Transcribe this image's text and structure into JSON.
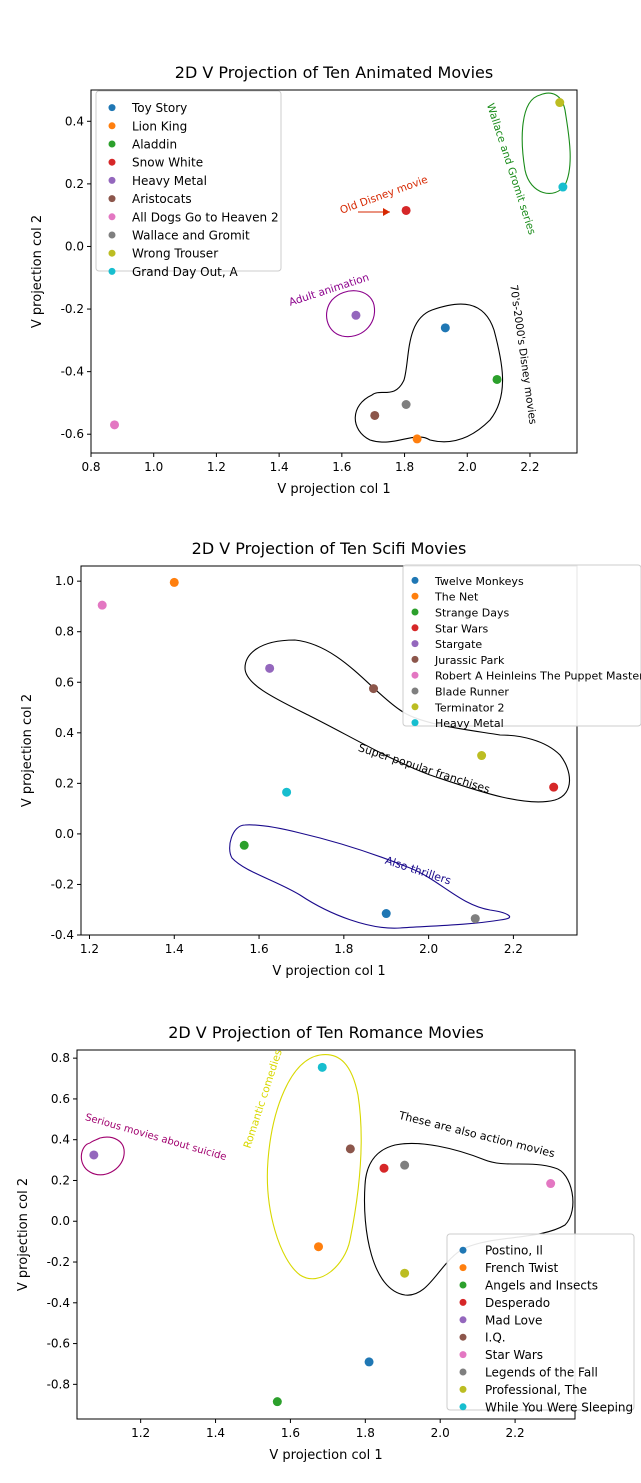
{
  "chart_data": [
    {
      "type": "scatter",
      "title": "2D V Projection of Ten Animated Movies",
      "xlabel": "V projection col 1",
      "ylabel": "V projection col 2",
      "xlim": [
        0.8,
        2.35
      ],
      "ylim": [
        -0.66,
        0.5
      ],
      "xticks": [
        "0.8",
        "1.0",
        "1.2",
        "1.4",
        "1.6",
        "1.8",
        "2.0",
        "2.2"
      ],
      "yticks": [
        "0.4",
        "0.2",
        "0.0",
        "-0.2",
        "-0.4",
        "-0.6"
      ],
      "legend": "top-left",
      "points": [
        {
          "name": "Toy Story",
          "x": 1.93,
          "y": -0.26,
          "color": "#1f77b4"
        },
        {
          "name": "Lion King",
          "x": 1.84,
          "y": -0.615,
          "color": "#ff7f0e"
        },
        {
          "name": "Aladdin",
          "x": 2.095,
          "y": -0.425,
          "color": "#2ca02c"
        },
        {
          "name": "Snow White",
          "x": 1.805,
          "y": 0.115,
          "color": "#d62728"
        },
        {
          "name": "Heavy Metal",
          "x": 1.645,
          "y": -0.22,
          "color": "#9467bd"
        },
        {
          "name": "Aristocats",
          "x": 1.705,
          "y": -0.54,
          "color": "#8c564b"
        },
        {
          "name": "All Dogs Go to Heaven 2",
          "x": 0.875,
          "y": -0.57,
          "color": "#e377c2"
        },
        {
          "name": "Wallace and Gromit",
          "x": 1.805,
          "y": -0.505,
          "color": "#7f7f7f"
        },
        {
          "name": "Wrong Trouser",
          "x": 2.295,
          "y": 0.46,
          "color": "#bcbd22"
        },
        {
          "name": "Grand Day Out, A",
          "x": 2.305,
          "y": 0.19,
          "color": "#17becf"
        }
      ],
      "annotations": [
        {
          "text": "Old Disney movie",
          "color": "#d62700"
        },
        {
          "text": "Adult animation",
          "color": "#8b008b"
        },
        {
          "text": "Wallace and Gromit series",
          "color": "#1a8c1a"
        },
        {
          "text": "70's-2000's Disney movies",
          "color": "#000000"
        }
      ]
    },
    {
      "type": "scatter",
      "title": "2D V Projection of Ten Scifi Movies",
      "xlabel": "V projection col 1",
      "ylabel": "V projection col 2",
      "xlim": [
        1.18,
        2.35
      ],
      "ylim": [
        -0.4,
        1.06
      ],
      "xticks": [
        "1.2",
        "1.4",
        "1.6",
        "1.8",
        "2.0",
        "2.2"
      ],
      "yticks": [
        "1.0",
        "0.8",
        "0.6",
        "0.4",
        "0.2",
        "0.0",
        "-0.2",
        "-0.4"
      ],
      "legend": "top-right",
      "points": [
        {
          "name": "Twelve Monkeys",
          "x": 1.9,
          "y": -0.315,
          "color": "#1f77b4"
        },
        {
          "name": "The Net",
          "x": 1.4,
          "y": 0.995,
          "color": "#ff7f0e"
        },
        {
          "name": "Strange Days",
          "x": 1.565,
          "y": -0.045,
          "color": "#2ca02c"
        },
        {
          "name": "Star Wars",
          "x": 2.295,
          "y": 0.185,
          "color": "#d62728"
        },
        {
          "name": "Stargate",
          "x": 1.625,
          "y": 0.655,
          "color": "#9467bd"
        },
        {
          "name": "Jurassic Park",
          "x": 1.87,
          "y": 0.575,
          "color": "#8c564b"
        },
        {
          "name": "Robert A Heinleins The Puppet Masters",
          "x": 1.23,
          "y": 0.905,
          "color": "#e377c2"
        },
        {
          "name": "Blade Runner",
          "x": 2.11,
          "y": -0.335,
          "color": "#7f7f7f"
        },
        {
          "name": "Terminator 2",
          "x": 2.125,
          "y": 0.31,
          "color": "#bcbd22"
        },
        {
          "name": "Heavy Metal",
          "x": 1.665,
          "y": 0.165,
          "color": "#17becf"
        }
      ],
      "annotations": [
        {
          "text": "Super popular franchises",
          "color": "#000000"
        },
        {
          "text": "Also thrillers",
          "color": "#1a0a8c"
        }
      ]
    },
    {
      "type": "scatter",
      "title": "2D V Projection of Ten Romance Movies",
      "xlabel": "V projection col 1",
      "ylabel": "V projection col 2",
      "xlim": [
        1.03,
        2.36
      ],
      "ylim": [
        -0.97,
        0.84
      ],
      "xticks": [
        "1.2",
        "1.4",
        "1.6",
        "1.8",
        "2.0",
        "2.2"
      ],
      "yticks": [
        "0.8",
        "0.6",
        "0.4",
        "0.2",
        "0.0",
        "-0.2",
        "-0.4",
        "-0.6",
        "-0.8"
      ],
      "legend": "bottom-right",
      "points": [
        {
          "name": "Postino, Il",
          "x": 1.81,
          "y": -0.69,
          "color": "#1f77b4"
        },
        {
          "name": "French Twist",
          "x": 1.675,
          "y": -0.125,
          "color": "#ff7f0e"
        },
        {
          "name": "Angels and Insects",
          "x": 1.565,
          "y": -0.885,
          "color": "#2ca02c"
        },
        {
          "name": "Desperado",
          "x": 1.85,
          "y": 0.26,
          "color": "#d62728"
        },
        {
          "name": "Mad Love",
          "x": 1.075,
          "y": 0.325,
          "color": "#9467bd"
        },
        {
          "name": "I.Q.",
          "x": 1.76,
          "y": 0.355,
          "color": "#8c564b"
        },
        {
          "name": "Star Wars",
          "x": 2.295,
          "y": 0.185,
          "color": "#e377c2"
        },
        {
          "name": "Legends of the Fall",
          "x": 1.905,
          "y": 0.275,
          "color": "#7f7f7f"
        },
        {
          "name": "Professional, The",
          "x": 1.905,
          "y": -0.255,
          "color": "#bcbd22"
        },
        {
          "name": "While You Were Sleeping",
          "x": 1.685,
          "y": 0.755,
          "color": "#17becf"
        }
      ],
      "annotations": [
        {
          "text": "Serious movies about suicide",
          "color": "#a0006e"
        },
        {
          "text": "Romantic comedies",
          "color": "#d8d800"
        },
        {
          "text": "These are also action movies",
          "color": "#000000"
        }
      ]
    }
  ]
}
